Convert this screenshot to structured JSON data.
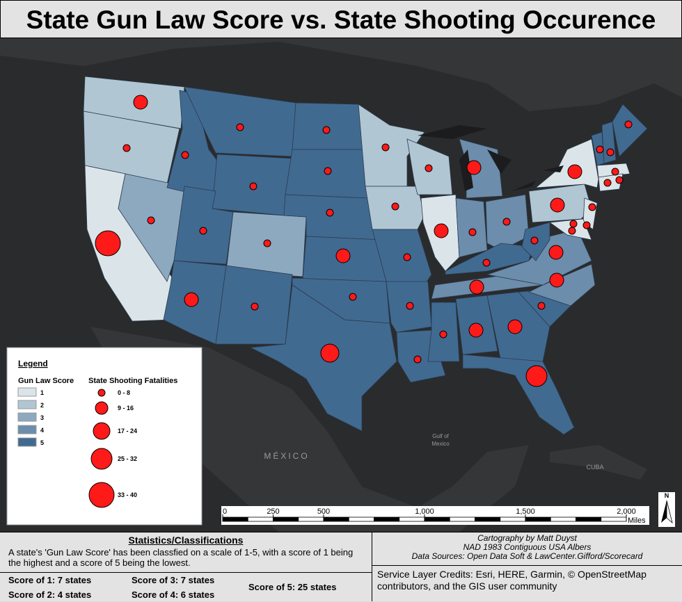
{
  "title": "State Gun Law Score vs. State Shooting Occurence",
  "legend": {
    "title": "Legend",
    "gun_law_score": {
      "title": "Gun Law Score",
      "classes": [
        {
          "label": "1",
          "color": "#dbe5e9"
        },
        {
          "label": "2",
          "color": "#b1c6d3"
        },
        {
          "label": "3",
          "color": "#8da9c0"
        },
        {
          "label": "4",
          "color": "#6c8dab"
        },
        {
          "label": "5",
          "color": "#416a91"
        }
      ]
    },
    "fatalities": {
      "title": "State Shooting Fatalities",
      "color": "#ff1a1a",
      "classes": [
        "0 - 8",
        "9 - 16",
        "17 - 24",
        "25 - 32",
        "33 - 40"
      ]
    }
  },
  "map_labels": {
    "mexico": "MÉXICO",
    "gulf": [
      "Gulf of",
      "Mexico"
    ],
    "cuba": "CUBA"
  },
  "scale_bar": {
    "ticks": [
      0,
      250,
      500,
      {
        "value": 1000,
        "label": "1,000"
      },
      {
        "value": 1500,
        "label": "1,500"
      },
      {
        "value": 2000,
        "label": "2,000"
      }
    ],
    "unit": "Miles",
    "north": "N"
  },
  "statistics": {
    "heading": "Statistics/Classifications",
    "description": "A state's 'Gun Law Score' has been classfied on a scale of 1-5, with a score of 1 being the highest and a score of 5 being the lowest.",
    "counts": [
      "Score of 1: 7 states",
      "Score of 2: 4 states",
      "Score of 3: 7 states",
      "Score of 4: 6 states",
      "Score of 5: 25 states"
    ]
  },
  "credits": {
    "cartography": "Cartography by Matt Duyst",
    "projection": "NAD 1983 Contiguous USA Albers",
    "sources": "Data Sources: Open Data Soft & LawCenter.Gifford/Scorecard",
    "service": "Service Layer Credits: Esri, HERE, Garmin, © OpenStreetMap contributors, and the GIS user community"
  }
}
